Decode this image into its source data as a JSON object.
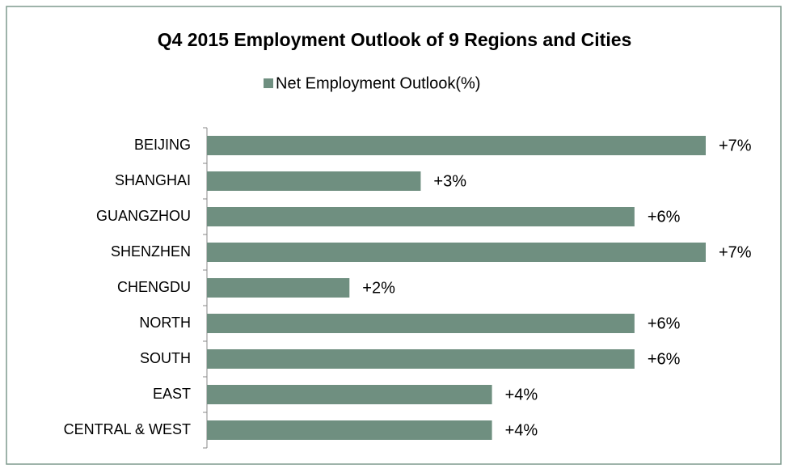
{
  "chart_data": {
    "type": "bar",
    "orientation": "horizontal",
    "title": "Q4 2015 Employment Outlook of 9 Regions and Cities",
    "categories": [
      "BEIJING",
      "SHANGHAI",
      "GUANGZHOU",
      "SHENZHEN",
      "CHENGDU",
      "NORTH",
      "SOUTH",
      "EAST",
      "CENTRAL & WEST"
    ],
    "series": [
      {
        "name": "Net Employment Outlook(%)",
        "color": "#6f8f80",
        "values": [
          7,
          3,
          6,
          7,
          2,
          6,
          6,
          4,
          4
        ],
        "value_labels": [
          "+7%",
          "+3%",
          "+6%",
          "+7%",
          "+2%",
          "+6%",
          "+6%",
          "+4%",
          "+4%"
        ]
      }
    ],
    "legend": "top"
  }
}
